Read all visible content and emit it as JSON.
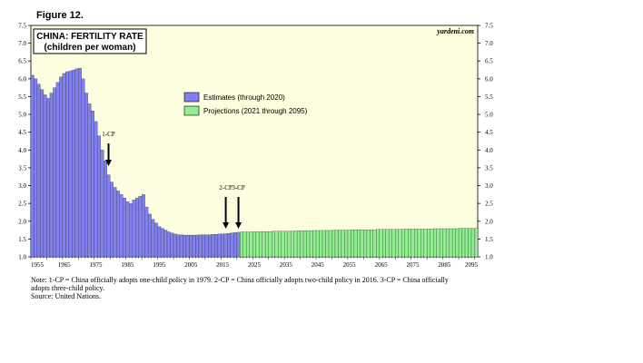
{
  "figure_label": "Figure 12.",
  "source_credit": "yardeni.com",
  "chart_data": {
    "type": "bar",
    "title": "CHINA: FERTILITY RATE",
    "subtitle": "(children per woman)",
    "ylim": [
      1.0,
      7.5
    ],
    "yticks": [
      "1.0",
      "1.5",
      "2.0",
      "2.5",
      "3.0",
      "3.5",
      "4.0",
      "4.5",
      "5.0",
      "5.5",
      "6.0",
      "6.5",
      "7.0",
      "7.5"
    ],
    "xlim": [
      1955,
      2095
    ],
    "xticks": [
      "1955",
      "1965",
      "1975",
      "1985",
      "1995",
      "2005",
      "2015",
      "2025",
      "2035",
      "2045",
      "2055",
      "2065",
      "2075",
      "2085",
      "2095"
    ],
    "grid": false,
    "legend_position": "center",
    "colors": {
      "estimates": "#8080ee",
      "projections": "#90ee90",
      "plot_bg": "#fdfde0"
    },
    "series": [
      {
        "name": "Estimates (through 2020)",
        "x": [
          1955,
          1956,
          1957,
          1958,
          1959,
          1960,
          1961,
          1962,
          1963,
          1964,
          1965,
          1966,
          1967,
          1968,
          1969,
          1970,
          1971,
          1972,
          1973,
          1974,
          1975,
          1976,
          1977,
          1978,
          1979,
          1980,
          1981,
          1982,
          1983,
          1984,
          1985,
          1986,
          1987,
          1988,
          1989,
          1990,
          1991,
          1992,
          1993,
          1994,
          1995,
          1996,
          1997,
          1998,
          1999,
          2000,
          2001,
          2002,
          2003,
          2004,
          2005,
          2006,
          2007,
          2008,
          2009,
          2010,
          2011,
          2012,
          2013,
          2014,
          2015,
          2016,
          2017,
          2018,
          2019,
          2020
        ],
        "values": [
          6.1,
          6.0,
          5.85,
          5.7,
          5.55,
          5.45,
          5.6,
          5.75,
          5.9,
          6.05,
          6.15,
          6.2,
          6.22,
          6.25,
          6.28,
          6.3,
          6.0,
          5.6,
          5.3,
          5.1,
          4.8,
          4.4,
          4.0,
          3.7,
          3.3,
          3.1,
          2.95,
          2.85,
          2.75,
          2.65,
          2.55,
          2.5,
          2.6,
          2.65,
          2.7,
          2.75,
          2.4,
          2.2,
          2.05,
          1.95,
          1.85,
          1.8,
          1.75,
          1.7,
          1.67,
          1.64,
          1.62,
          1.62,
          1.61,
          1.61,
          1.61,
          1.61,
          1.61,
          1.62,
          1.62,
          1.62,
          1.62,
          1.63,
          1.63,
          1.64,
          1.64,
          1.65,
          1.66,
          1.67,
          1.68,
          1.69
        ]
      },
      {
        "name": "Projections (2021 through 2095)",
        "x": [
          2021,
          2022,
          2023,
          2024,
          2025,
          2026,
          2027,
          2028,
          2029,
          2030,
          2031,
          2032,
          2033,
          2034,
          2035,
          2036,
          2037,
          2038,
          2039,
          2040,
          2041,
          2042,
          2043,
          2044,
          2045,
          2046,
          2047,
          2048,
          2049,
          2050,
          2051,
          2052,
          2053,
          2054,
          2055,
          2056,
          2057,
          2058,
          2059,
          2060,
          2061,
          2062,
          2063,
          2064,
          2065,
          2066,
          2067,
          2068,
          2069,
          2070,
          2071,
          2072,
          2073,
          2074,
          2075,
          2076,
          2077,
          2078,
          2079,
          2080,
          2081,
          2082,
          2083,
          2084,
          2085,
          2086,
          2087,
          2088,
          2089,
          2090,
          2091,
          2092,
          2093,
          2094,
          2095
        ],
        "values": [
          1.7,
          1.7,
          1.7,
          1.7,
          1.71,
          1.71,
          1.71,
          1.71,
          1.71,
          1.71,
          1.72,
          1.72,
          1.72,
          1.72,
          1.72,
          1.72,
          1.72,
          1.73,
          1.73,
          1.73,
          1.73,
          1.73,
          1.73,
          1.74,
          1.74,
          1.74,
          1.74,
          1.74,
          1.74,
          1.75,
          1.75,
          1.75,
          1.75,
          1.75,
          1.75,
          1.76,
          1.76,
          1.76,
          1.76,
          1.76,
          1.76,
          1.76,
          1.76,
          1.77,
          1.77,
          1.77,
          1.77,
          1.77,
          1.77,
          1.77,
          1.77,
          1.77,
          1.78,
          1.78,
          1.78,
          1.78,
          1.78,
          1.78,
          1.78,
          1.78,
          1.78,
          1.79,
          1.79,
          1.79,
          1.79,
          1.79,
          1.79,
          1.79,
          1.79,
          1.8,
          1.8,
          1.8,
          1.8,
          1.8,
          1.8
        ]
      }
    ],
    "annotations": [
      {
        "label": "1-CP",
        "year": 1979
      },
      {
        "label": "2-CP",
        "year": 2016
      },
      {
        "label": "3-CP",
        "year": 2020
      }
    ]
  },
  "notes": [
    "Note: 1-CP = China officially adopts one-child policy in 1979. 2-CP = China officially adopts two-child policy in 2016. 3-CP = China officially adopts three-child policy.",
    "Source: United Nations."
  ]
}
